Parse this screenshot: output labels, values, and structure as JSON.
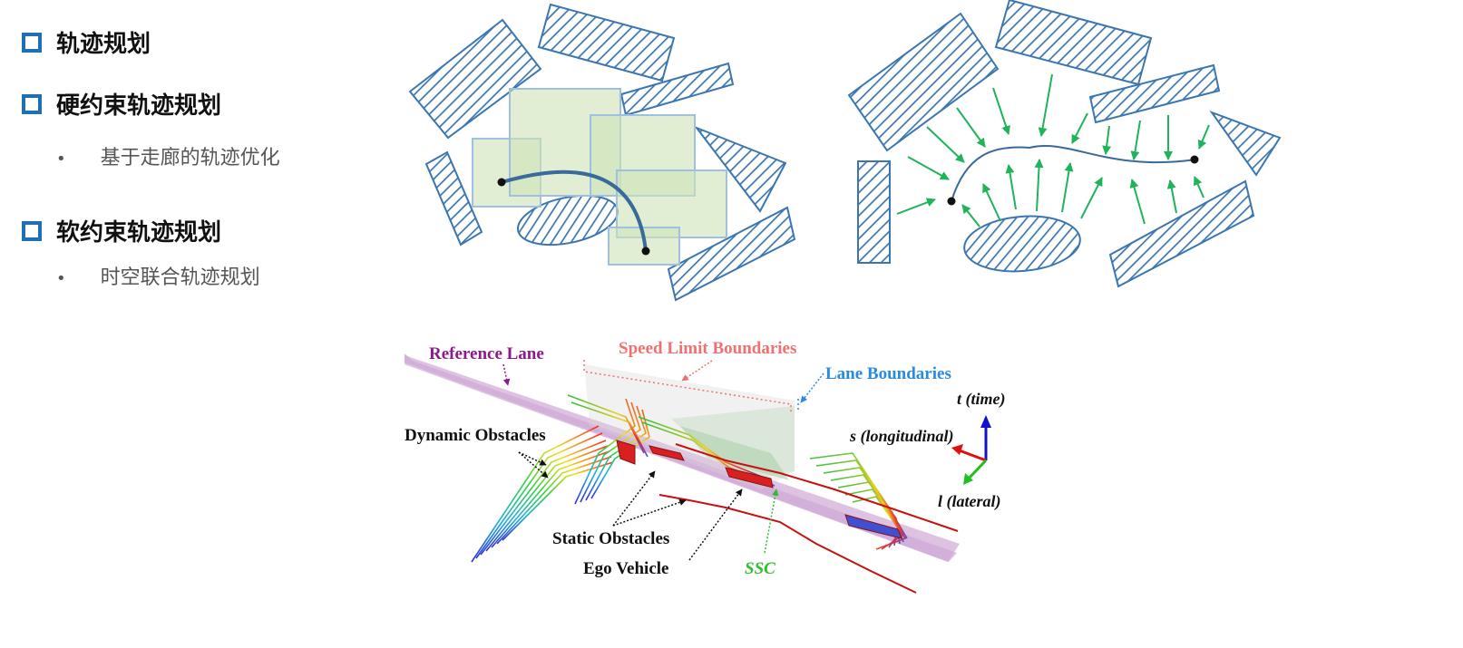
{
  "outline": {
    "h1": "轨迹规划",
    "h2": "硬约束轨迹规划",
    "h2_sub": "基于走廊的轨迹优化",
    "h3": "软约束轨迹规划",
    "h3_sub": "时空联合轨迹规划"
  },
  "figure3": {
    "reference_lane": "Reference Lane",
    "speed_limit_boundaries": "Speed Limit Boundaries",
    "lane_boundaries": "Lane Boundaries",
    "dynamic_obstacles": "Dynamic Obstacles",
    "static_obstacles": "Static Obstacles",
    "ego_vehicle": "Ego Vehicle",
    "ssc": "SSC",
    "axis_t": "t (time)",
    "axis_s": "s (longitudinal)",
    "axis_l": "l (lateral)"
  },
  "colors": {
    "bullet": "#1f6fb6",
    "obstacle": "#3b76b0",
    "corridor_fill": "#cfe3b8",
    "corridor_stroke": "#9fc0e0",
    "force_arrow": "#1fb35a",
    "reference_lane": "#8b1a8b",
    "speed_limit": "#f07070",
    "lane_boundary": "#2a8ae0",
    "ssc": "#2ec02e"
  }
}
